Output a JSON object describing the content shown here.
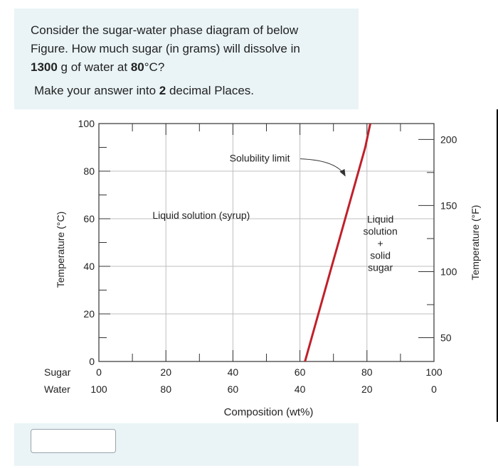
{
  "question": {
    "line1": "Consider the sugar-water phase diagram of below",
    "line2": "Figure.  How much sugar (in grams) will dissolve in",
    "line3_bold_amount": "1300",
    "line3_mid": " g of water at ",
    "line3_bold_temp": "80",
    "line3_end": "°C?",
    "instruction_pre": "Make your answer into ",
    "instruction_bold": "2",
    "instruction_post": " decimal Places."
  },
  "answer": {
    "value": ""
  },
  "chart_data": {
    "type": "line",
    "title": "",
    "xlabel": "Composition (wt%)",
    "ylabel": "Temperature (°C)",
    "ylabel_right": "Temperature (°F)",
    "xlim": [
      0,
      100
    ],
    "ylim": [
      0,
      100
    ],
    "ylim_right_F": [
      32,
      212
    ],
    "x_ticks_sugar": [
      0,
      20,
      40,
      60,
      80,
      100
    ],
    "x_ticks_water": [
      100,
      80,
      60,
      40,
      20,
      0
    ],
    "x_tick_prefix_sugar": "Sugar",
    "x_tick_prefix_water": "Water",
    "y_ticks": [
      0,
      20,
      40,
      60,
      80,
      100
    ],
    "y_ticks_right": [
      50,
      100,
      150,
      200
    ],
    "grid": true,
    "series": [
      {
        "name": "Solubility limit",
        "color": "#c0202a",
        "x": [
          61.5,
          63.5,
          65.5,
          67.5,
          69.5,
          71.5,
          73.5,
          75.5,
          77.5,
          79.5,
          81.0
        ],
        "y": [
          0,
          10,
          20,
          30,
          40,
          50,
          60,
          70,
          80,
          90,
          100
        ]
      }
    ],
    "annotations": [
      {
        "text": "Solubility limit",
        "x": 48,
        "y": 84,
        "arrow_to": [
          73.5,
          78
        ]
      },
      {
        "text": "Liquid solution (syrup)",
        "x": 16,
        "y": 60
      },
      {
        "lines": [
          "Liquid",
          "solution",
          "+",
          "solid",
          "sugar"
        ],
        "x": 84,
        "y": 47
      }
    ]
  }
}
